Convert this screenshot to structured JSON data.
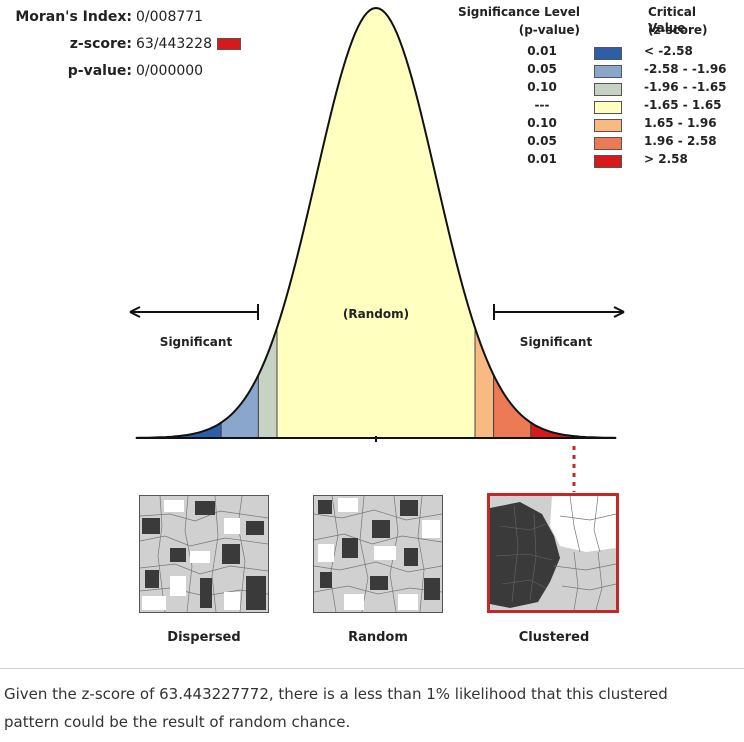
{
  "stats": {
    "morans_index_label": "Moran's Index:",
    "morans_index_value": "0/008771",
    "z_score_label": "z-score:",
    "z_score_value": "63/443228",
    "p_value_label": "p-value:",
    "p_value_value": "0/000000"
  },
  "legend": {
    "significance_header": "Significance Level",
    "significance_subheader": "(p-value)",
    "critical_header": "Critical Value",
    "critical_subheader": "(z-score)",
    "rows": [
      {
        "p": "0.01",
        "z": "< -2.58",
        "color": "#2c5fa8"
      },
      {
        "p": "0.05",
        "z": "-2.58 - -1.96",
        "color": "#8aa6cc"
      },
      {
        "p": "0.10",
        "z": "-1.96 - -1.65",
        "color": "#c6d3c4"
      },
      {
        "p": "---",
        "z": "-1.65 - 1.65",
        "color": "#ffffbf"
      },
      {
        "p": "0.10",
        "z": "1.65 - 1.96",
        "color": "#f9b983"
      },
      {
        "p": "0.05",
        "z": "1.96 - 2.58",
        "color": "#ec7a55"
      },
      {
        "p": "0.01",
        "z": "> 2.58",
        "color": "#d7191c"
      }
    ]
  },
  "chart_data": {
    "type": "area",
    "title": "",
    "xlabel": "",
    "ylabel": "",
    "distribution": "standard normal",
    "zones": [
      {
        "from": -4,
        "to": -2.58,
        "color": "#2c5fa8",
        "label": ""
      },
      {
        "from": -2.58,
        "to": -1.96,
        "color": "#8aa6cc",
        "label": ""
      },
      {
        "from": -1.96,
        "to": -1.65,
        "color": "#c6d3c4",
        "label": ""
      },
      {
        "from": -1.65,
        "to": 1.65,
        "color": "#ffffbf",
        "label": "(Random)"
      },
      {
        "from": 1.65,
        "to": 1.96,
        "color": "#f9b983",
        "label": ""
      },
      {
        "from": 1.96,
        "to": 2.58,
        "color": "#ec7a55",
        "label": ""
      },
      {
        "from": 2.58,
        "to": 4,
        "color": "#d7191c",
        "label": ""
      }
    ],
    "annotations": {
      "left": "Significant",
      "center": "(Random)",
      "right": "Significant"
    },
    "highlighted_zone": "> 2.58"
  },
  "patterns": {
    "dispersed_label": "Dispersed",
    "random_label": "Random",
    "clustered_label": "Clustered",
    "highlight_color": "#c62828"
  },
  "conclusion": "Given the z-score of 63.443227772, there is a less than 1% likelihood that this clustered pattern could be the result of random chance."
}
